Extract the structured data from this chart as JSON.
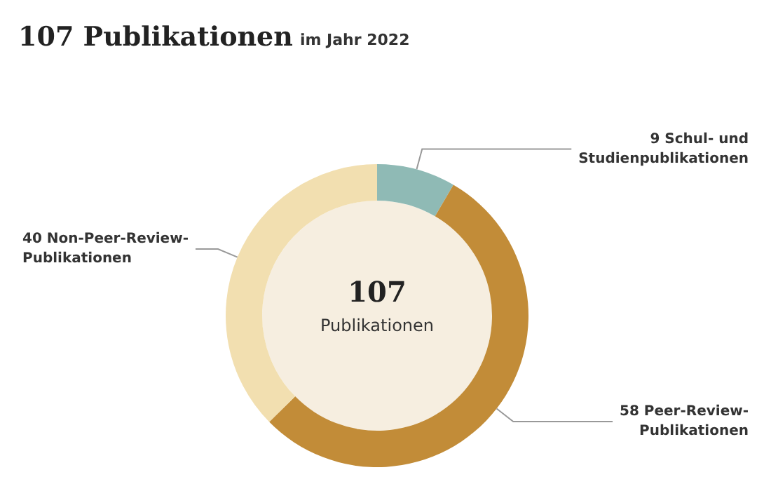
{
  "chart_data": {
    "type": "donut",
    "title": "107 Publikationen",
    "subtitle": "im Jahr 2022",
    "categories": [
      "9 Schul- und\nStudienpublikationen",
      "58 Peer-Review-\nPublikationen",
      "40 Non-Peer-Review-\nPublikationen"
    ],
    "values": [
      9,
      58,
      40
    ],
    "colors": [
      "#8fbab5",
      "#c28c38",
      "#f2dfb0"
    ],
    "annotations": [
      "107",
      "Publikationen"
    ],
    "legend": false
  }
}
